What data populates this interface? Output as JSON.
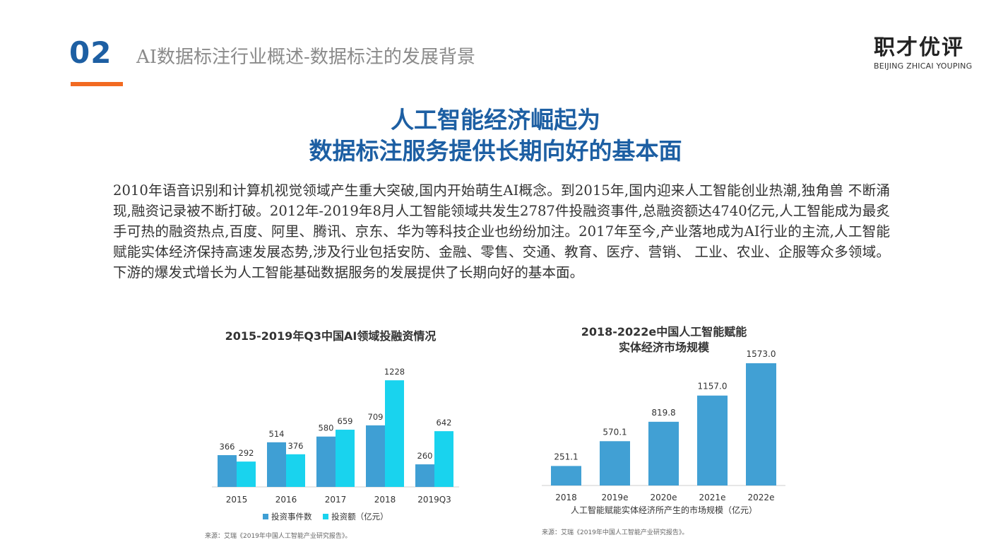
{
  "header": {
    "section_number": "02",
    "section_title": "AI数据标注行业概述-数据标注的发展背景",
    "logo_cn": "职才优评",
    "logo_en": "BEIJING ZHICAI YOUPING"
  },
  "headline": {
    "line1": "人工智能经济崛起为",
    "line2": "数据标注服务提供长期向好的基本面"
  },
  "paragraph": "2010年语音识别和计算机视觉领域产生重大突破,国内开始萌生AI概念。到2015年,国内迎来人工智能创业热潮,独角兽 不断涌现,融资记录被不断打破。2012年-2019年8月人工智能领域共发生2787件投融资事件,总融资额达4740亿元,人工智能成为最炙手可热的融资热点,百度、阿里、腾讯、京东、华为等科技企业也纷纷加注。2017年至今,产业落地成为AI行业的主流,人工智能赋能实体经济保持高速发展态势,涉及行业包括安防、金融、零售、交通、教育、医疗、营销、 工业、农业、企服等众多领域。下游的爆发式增长为人工智能基础数据服务的发展提供了长期向好的基本面。",
  "chart_data": [
    {
      "type": "bar",
      "title": "2015-2019年Q3中国AI领域投融资情况",
      "categories": [
        "2015",
        "2016",
        "2017",
        "2018",
        "2019Q3"
      ],
      "series": [
        {
          "name": "投资事件数",
          "values": [
            366,
            514,
            580,
            709,
            260
          ],
          "color": "#3f9fd4"
        },
        {
          "name": "投资额（亿元）",
          "values": [
            292,
            376,
            659,
            1228,
            642
          ],
          "color": "#19d3ee"
        }
      ],
      "ylim": [
        0,
        1400
      ],
      "legend_position": "bottom",
      "grid": false,
      "source": "来源：艾瑞《2019年中国人工智能产业研究报告》。"
    },
    {
      "type": "bar",
      "title": "2018-2022e中国人工智能赋能实体经济市场规模",
      "categories": [
        "2018",
        "2019e",
        "2020e",
        "2021e",
        "2022e"
      ],
      "values": [
        251.1,
        570.1,
        819.8,
        1157.0,
        1573.0
      ],
      "value_labels": [
        "251.1",
        "570.1",
        "819.8",
        "1157.0",
        "1573.0"
      ],
      "color": "#41a0d4",
      "ylim": [
        0,
        1800
      ],
      "grid": false,
      "caption": "人工智能赋能实体经济所产生的市场规模（亿元）",
      "source": "来源：艾瑞《2019年中国人工智能产业研究报告》。"
    }
  ]
}
